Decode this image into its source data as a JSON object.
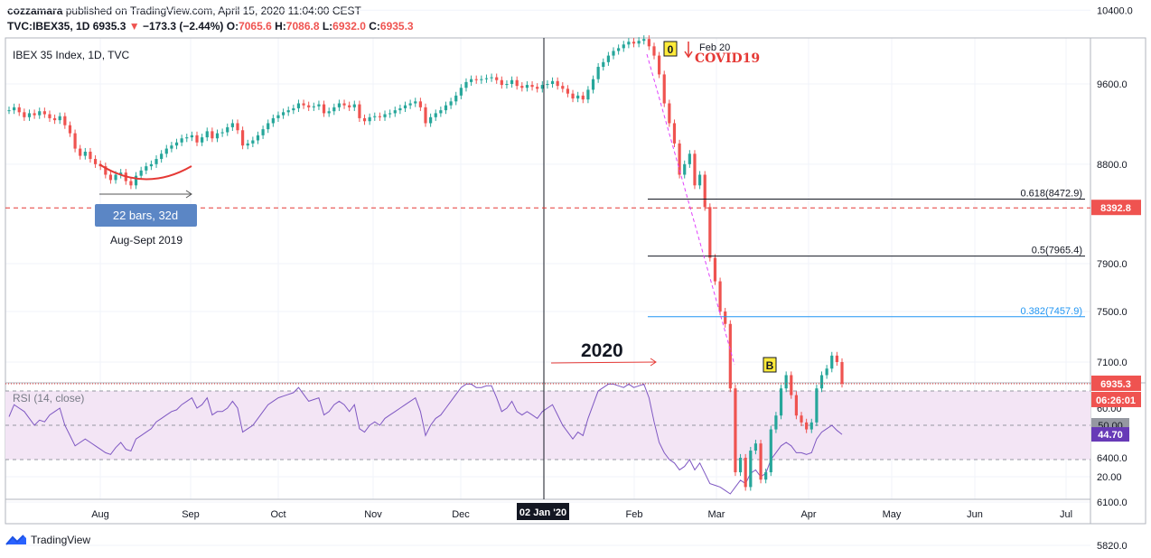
{
  "header": {
    "author": "cozzamara",
    "published_text": "published on TradingView.com, April 15, 2020 11:04:00 CEST",
    "symbol": "TVC:IBEX35, 1D",
    "last": "6935.3",
    "change": "−173.3 (−2.44%)",
    "o_label": "O:",
    "o": "7065.6",
    "h_label": "H:",
    "h": "7086.8",
    "l_label": "L:",
    "l": "6932.0",
    "c_label": "C:",
    "c": "6935.3"
  },
  "chart_data": [
    {
      "type": "candlestick",
      "title": "IBEX 35 Index, 1D, TVC",
      "x_ticks": [
        "Aug",
        "Sep",
        "Oct",
        "Nov",
        "Dec",
        "Feb",
        "Mar",
        "Apr",
        "May",
        "Jun",
        "Jul"
      ],
      "crosshair_x_label": "02 Jan '20",
      "y_ticks": [
        10400.0,
        9600.0,
        8800.0,
        7900.0,
        7500.0,
        7100.0,
        6400.0,
        6100.0,
        5820.0
      ],
      "y_tick_labels": [
        "10400.0",
        "9600.0",
        "8800.0",
        "7900.0",
        "7500.0",
        "7100.0",
        "6400.0",
        "6100.0",
        "5820.0"
      ],
      "scale": "log",
      "price_labels": {
        "support": "8392.8",
        "last": "6935.3",
        "countdown": "06:26:01"
      },
      "fib_levels": [
        {
          "label": "0.618(8472.9)",
          "value": 8472.9,
          "color": "#131722"
        },
        {
          "label": "0.5(7965.4)",
          "value": 7965.4,
          "color": "#131722"
        },
        {
          "label": "0.382(7457.9)",
          "value": 7457.9,
          "color": "#2196f3"
        }
      ],
      "horizontal_lines": [
        {
          "value": 8392.8,
          "style": "dashed",
          "color": "#e53935"
        },
        {
          "value": 6935.3,
          "style": "dotted",
          "color": "#e53935"
        }
      ],
      "annotations": {
        "bars_label": "22 bars, 32d",
        "period_label": "Aug-Sept 2019",
        "point_0": "0",
        "point_b": "B",
        "feb_label": "Feb 20",
        "covid_label": "COVID19",
        "year_label": "2020"
      },
      "closes": [
        9330,
        9360,
        9310,
        9260,
        9300,
        9280,
        9320,
        9290,
        9250,
        9230,
        9270,
        9180,
        9100,
        8950,
        8880,
        8920,
        8850,
        8800,
        8780,
        8700,
        8650,
        8700,
        8720,
        8640,
        8600,
        8690,
        8740,
        8780,
        8800,
        8850,
        8900,
        8950,
        8980,
        9010,
        9050,
        9060,
        9080,
        9010,
        9060,
        9120,
        9050,
        9100,
        9110,
        9160,
        9200,
        9130,
        8980,
        9000,
        9030,
        9080,
        9140,
        9200,
        9250,
        9280,
        9310,
        9330,
        9350,
        9400,
        9380,
        9360,
        9370,
        9390,
        9300,
        9320,
        9360,
        9400,
        9380,
        9360,
        9390,
        9250,
        9220,
        9260,
        9270,
        9260,
        9290,
        9300,
        9330,
        9350,
        9380,
        9400,
        9420,
        9360,
        9200,
        9260,
        9300,
        9330,
        9380,
        9420,
        9480,
        9560,
        9620,
        9650,
        9640,
        9650,
        9660,
        9670,
        9640,
        9590,
        9600,
        9640,
        9580,
        9560,
        9590,
        9570,
        9550,
        9590,
        9600,
        9630,
        9580,
        9550,
        9500,
        9450,
        9480,
        9440,
        9540,
        9650,
        9780,
        9830,
        9900,
        9950,
        9980,
        10020,
        10050,
        10030,
        10060,
        10080,
        10000,
        9900,
        9700,
        9400,
        9200,
        9000,
        8700,
        8800,
        8900,
        8600,
        8700,
        8400,
        7950,
        7750,
        7500,
        7400,
        6900,
        6300,
        6400,
        6200,
        6450,
        6500,
        6250,
        6300,
        6600,
        6700,
        6900,
        7000,
        6850,
        6700,
        6650,
        6600,
        6650,
        6900,
        7000,
        7050,
        7150,
        7100,
        6935
      ],
      "rsi": {
        "title": "RSI (14, close)",
        "y_ticks": [
          60.0,
          20.0
        ],
        "y_tick_labels": [
          "60.00",
          "20.00"
        ],
        "band_upper": 70,
        "band_lower": 30,
        "mid": 50,
        "mid_label": "50.00",
        "current": 44.7,
        "current_label": "44.70",
        "values": [
          55,
          62,
          60,
          58,
          54,
          50,
          53,
          52,
          56,
          58,
          60,
          50,
          44,
          38,
          40,
          42,
          40,
          38,
          36,
          34,
          33,
          37,
          40,
          36,
          35,
          42,
          44,
          46,
          48,
          52,
          54,
          56,
          58,
          59,
          62,
          64,
          66,
          60,
          62,
          66,
          56,
          58,
          58,
          60,
          64,
          60,
          46,
          48,
          50,
          54,
          58,
          62,
          64,
          66,
          67,
          68,
          69,
          72,
          68,
          64,
          65,
          66,
          56,
          58,
          62,
          64,
          62,
          58,
          62,
          48,
          46,
          50,
          52,
          50,
          54,
          56,
          58,
          60,
          62,
          64,
          66,
          58,
          44,
          50,
          54,
          56,
          60,
          64,
          68,
          72,
          74,
          74,
          72,
          72,
          73,
          73,
          66,
          58,
          60,
          64,
          58,
          56,
          58,
          56,
          54,
          58,
          60,
          62,
          56,
          50,
          46,
          42,
          46,
          44,
          54,
          62,
          70,
          72,
          74,
          74,
          73,
          72,
          74,
          72,
          73,
          74,
          66,
          52,
          40,
          34,
          30,
          28,
          24,
          26,
          30,
          24,
          28,
          22,
          16,
          15,
          14,
          12,
          10,
          14,
          18,
          16,
          22,
          24,
          20,
          22,
          30,
          34,
          38,
          40,
          38,
          34,
          34,
          33,
          34,
          42,
          46,
          48,
          50,
          47,
          44.7
        ]
      }
    }
  ],
  "footer": {
    "brand": "TradingView"
  },
  "colors": {
    "up": "#26a69a",
    "down": "#ef5350",
    "rsi_line": "#7e57c2",
    "rsi_band": "#f3e5f5",
    "brand_blue": "#2962ff"
  }
}
